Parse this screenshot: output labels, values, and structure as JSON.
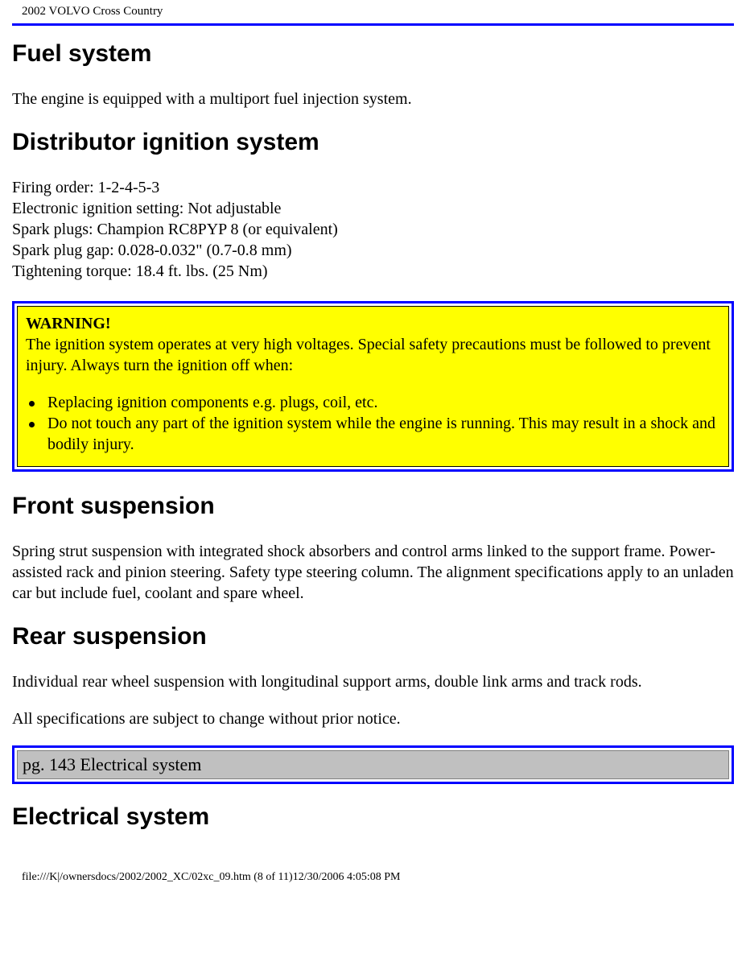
{
  "header": {
    "title": "2002 VOLVO Cross Country"
  },
  "sections": {
    "fuel": {
      "heading": "Fuel system",
      "text": "The engine is equipped with a multiport fuel injection system."
    },
    "ignition": {
      "heading": "Distributor ignition system",
      "lines": {
        "l1": "Firing order: 1-2-4-5-3",
        "l2": "Electronic ignition setting: Not adjustable",
        "l3": "Spark plugs: Champion RC8PYP 8 (or equivalent)",
        "l4": "Spark plug gap: 0.028-0.032\" (0.7-0.8 mm)",
        "l5": "Tightening torque: 18.4 ft. lbs. (25 Nm)"
      }
    },
    "warning": {
      "title": "WARNING!",
      "intro": "The ignition system operates at very high voltages. Special safety precautions must be followed to prevent injury. Always turn the ignition off when:",
      "bullets": {
        "b1": "Replacing ignition components e.g. plugs, coil, etc.",
        "b2": "Do not touch any part of the ignition system while the engine is running. This may result in a shock and bodily injury."
      }
    },
    "front_susp": {
      "heading": "Front suspension",
      "text": "Spring strut suspension with integrated shock absorbers and control arms linked to the support frame. Power-assisted rack and pinion steering. Safety type steering column. The alignment specifications apply to an unladen car but include fuel, coolant and spare wheel."
    },
    "rear_susp": {
      "heading": "Rear suspension",
      "text1": "Individual rear wheel suspension with longitudinal support arms, double link arms and track rods.",
      "text2": "All specifications are subject to change without prior notice."
    },
    "page_nav": {
      "text": "pg. 143 Electrical system"
    },
    "electrical": {
      "heading": "Electrical system"
    }
  },
  "footer": {
    "text": "file:///K|/ownersdocs/2002/2002_XC/02xc_09.htm (8 of 11)12/30/2006 4:05:08 PM"
  },
  "colors": {
    "accent_border": "#0000ff",
    "warning_bg": "#ffff00",
    "nav_bg": "#c0c0c0"
  }
}
